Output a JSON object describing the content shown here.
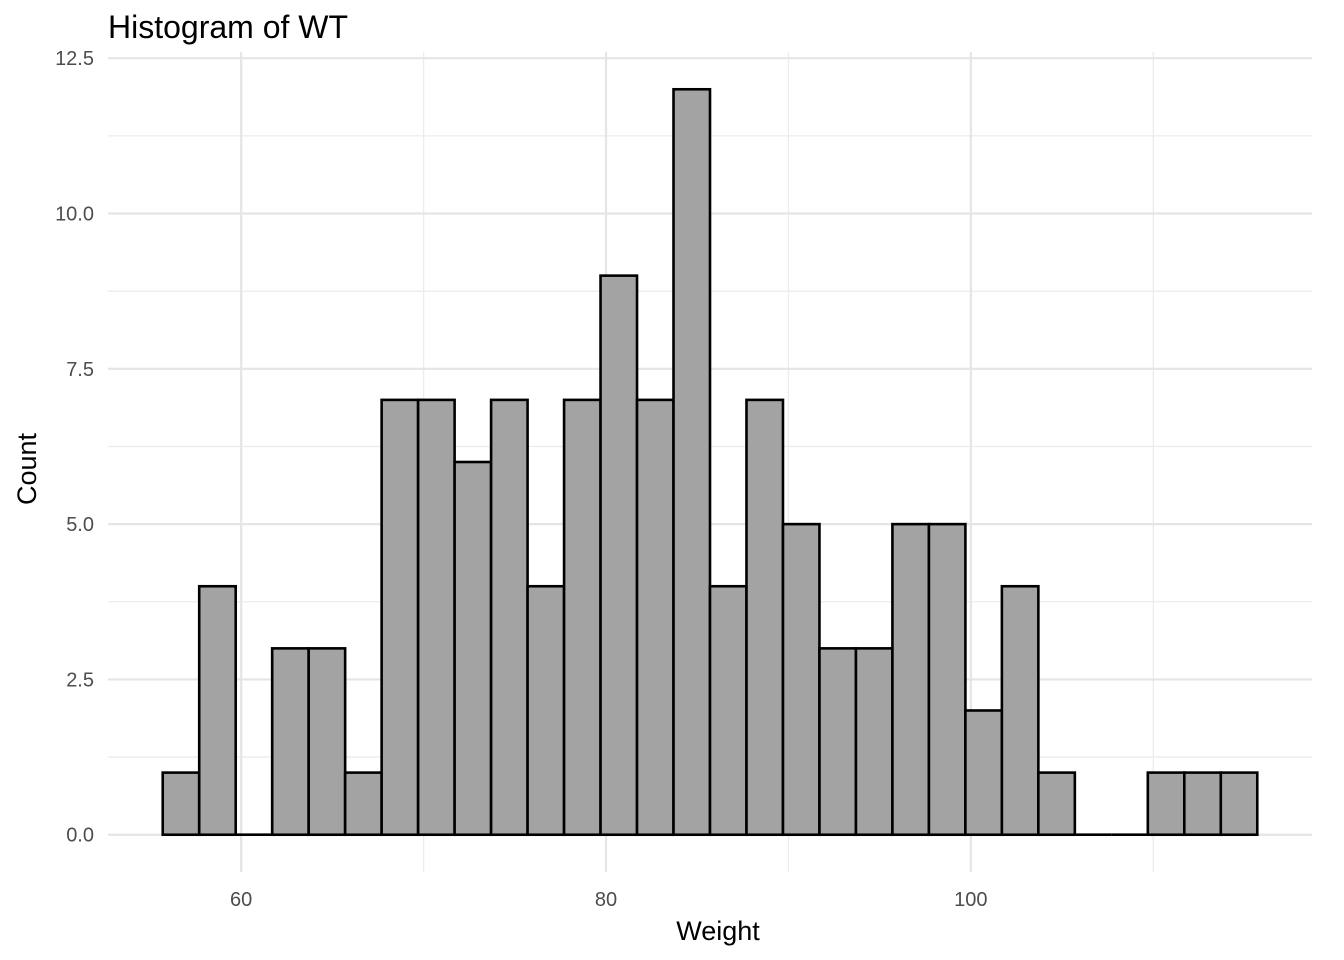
{
  "chart_data": {
    "type": "bar",
    "title": "Histogram of WT",
    "xlabel": "Weight",
    "ylabel": "Count",
    "bin_width": 2,
    "bins": [
      {
        "start": 55.7,
        "end": 57.7,
        "count": 1
      },
      {
        "start": 57.7,
        "end": 59.7,
        "count": 4
      },
      {
        "start": 59.7,
        "end": 61.7,
        "count": 0
      },
      {
        "start": 61.7,
        "end": 63.7,
        "count": 3
      },
      {
        "start": 63.7,
        "end": 65.7,
        "count": 3
      },
      {
        "start": 65.7,
        "end": 67.7,
        "count": 1
      },
      {
        "start": 67.7,
        "end": 69.7,
        "count": 7
      },
      {
        "start": 69.7,
        "end": 71.7,
        "count": 7
      },
      {
        "start": 71.7,
        "end": 73.7,
        "count": 6
      },
      {
        "start": 73.7,
        "end": 75.7,
        "count": 7
      },
      {
        "start": 75.7,
        "end": 77.7,
        "count": 4
      },
      {
        "start": 77.7,
        "end": 79.7,
        "count": 7
      },
      {
        "start": 79.7,
        "end": 81.7,
        "count": 9
      },
      {
        "start": 81.7,
        "end": 83.7,
        "count": 7
      },
      {
        "start": 83.7,
        "end": 85.7,
        "count": 12
      },
      {
        "start": 85.7,
        "end": 87.7,
        "count": 4
      },
      {
        "start": 87.7,
        "end": 89.7,
        "count": 7
      },
      {
        "start": 89.7,
        "end": 91.7,
        "count": 5
      },
      {
        "start": 91.7,
        "end": 93.7,
        "count": 3
      },
      {
        "start": 93.7,
        "end": 95.7,
        "count": 3
      },
      {
        "start": 95.7,
        "end": 97.7,
        "count": 5
      },
      {
        "start": 97.7,
        "end": 99.7,
        "count": 5
      },
      {
        "start": 99.7,
        "end": 101.7,
        "count": 2
      },
      {
        "start": 101.7,
        "end": 103.7,
        "count": 4
      },
      {
        "start": 103.7,
        "end": 105.7,
        "count": 1
      },
      {
        "start": 105.7,
        "end": 107.7,
        "count": 0
      },
      {
        "start": 107.7,
        "end": 109.7,
        "count": 0
      },
      {
        "start": 109.7,
        "end": 111.7,
        "count": 1
      },
      {
        "start": 111.7,
        "end": 113.7,
        "count": 1
      },
      {
        "start": 113.7,
        "end": 115.7,
        "count": 1
      }
    ],
    "x_ticks": [
      {
        "value": 60,
        "label": "60"
      },
      {
        "value": 80,
        "label": "80"
      },
      {
        "value": 100,
        "label": "100"
      }
    ],
    "y_ticks": [
      {
        "value": 0,
        "label": "0.0"
      },
      {
        "value": 2.5,
        "label": "2.5"
      },
      {
        "value": 5,
        "label": "5.0"
      },
      {
        "value": 7.5,
        "label": "7.5"
      },
      {
        "value": 10,
        "label": "10.0"
      },
      {
        "value": 12.5,
        "label": "12.5"
      }
    ],
    "xlim": [
      52.7,
      118.7
    ],
    "ylim": [
      -0.6,
      12.6
    ],
    "grid": true,
    "colors": {
      "bar_fill": "#a3a3a3",
      "bar_stroke": "#000000",
      "grid": "#e5e5e5"
    }
  }
}
